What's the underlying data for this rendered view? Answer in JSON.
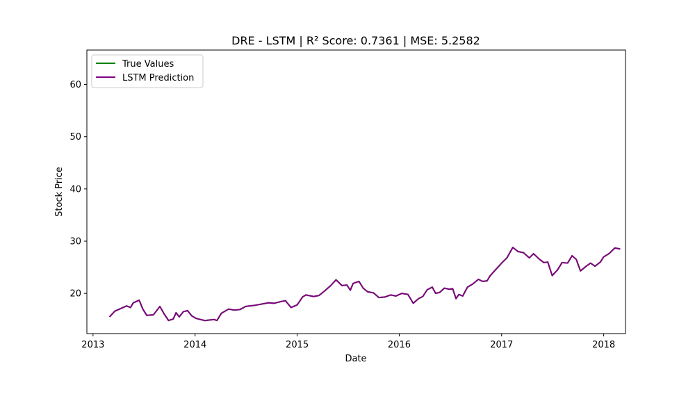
{
  "chart_data": {
    "type": "line",
    "title": "DRE - LSTM | R² Score: 0.7361 | MSE: 5.2582",
    "xlabel": "Date",
    "ylabel": "Stock Price",
    "xlim": [
      "2012-12-10",
      "2018-03-20"
    ],
    "ylim": [
      12.3,
      66.6
    ],
    "x_ticks": [
      {
        "date": "2013-01-01",
        "label": "2013"
      },
      {
        "date": "2014-01-01",
        "label": "2014"
      },
      {
        "date": "2015-01-01",
        "label": "2015"
      },
      {
        "date": "2016-01-01",
        "label": "2016"
      },
      {
        "date": "2017-01-01",
        "label": "2017"
      },
      {
        "date": "2018-01-01",
        "label": "2018"
      }
    ],
    "y_ticks": [
      20,
      30,
      40,
      50,
      60
    ],
    "grid": false,
    "legend_position": "top-left",
    "series": [
      {
        "name": "True Values",
        "color": "#008000",
        "points": [
          [
            "2013-03-01",
            15.5
          ],
          [
            "2013-03-20",
            16.6
          ],
          [
            "2013-04-10",
            17.1
          ],
          [
            "2013-05-01",
            17.6
          ],
          [
            "2013-05-15",
            17.3
          ],
          [
            "2013-05-25",
            18.2
          ],
          [
            "2013-06-15",
            18.7
          ],
          [
            "2013-06-28",
            17.0
          ],
          [
            "2013-07-12",
            15.8
          ],
          [
            "2013-08-05",
            15.9
          ],
          [
            "2013-08-28",
            17.5
          ],
          [
            "2013-09-12",
            16.1
          ],
          [
            "2013-09-28",
            14.8
          ],
          [
            "2013-10-15",
            15.1
          ],
          [
            "2013-10-25",
            16.3
          ],
          [
            "2013-11-05",
            15.5
          ],
          [
            "2013-11-20",
            16.5
          ],
          [
            "2013-12-05",
            16.7
          ],
          [
            "2013-12-20",
            15.7
          ],
          [
            "2014-01-05",
            15.2
          ],
          [
            "2014-01-20",
            15.0
          ],
          [
            "2014-02-05",
            14.8
          ],
          [
            "2014-02-20",
            14.9
          ],
          [
            "2014-03-10",
            15.0
          ],
          [
            "2014-03-20",
            14.8
          ],
          [
            "2014-04-05",
            16.2
          ],
          [
            "2014-05-01",
            17.0
          ],
          [
            "2014-05-20",
            16.8
          ],
          [
            "2014-06-10",
            16.9
          ],
          [
            "2014-07-01",
            17.5
          ],
          [
            "2014-08-01",
            17.7
          ],
          [
            "2014-09-01",
            18.0
          ],
          [
            "2014-09-20",
            18.2
          ],
          [
            "2014-10-10",
            18.1
          ],
          [
            "2014-11-01",
            18.4
          ],
          [
            "2014-11-20",
            18.6
          ],
          [
            "2014-12-10",
            17.3
          ],
          [
            "2015-01-01",
            17.8
          ],
          [
            "2015-01-20",
            19.3
          ],
          [
            "2015-02-01",
            19.7
          ],
          [
            "2015-03-01",
            19.4
          ],
          [
            "2015-03-20",
            19.6
          ],
          [
            "2015-04-10",
            20.5
          ],
          [
            "2015-05-01",
            21.5
          ],
          [
            "2015-05-20",
            22.6
          ],
          [
            "2015-06-10",
            21.5
          ],
          [
            "2015-06-28",
            21.6
          ],
          [
            "2015-07-10",
            20.6
          ],
          [
            "2015-07-20",
            21.9
          ],
          [
            "2015-08-10",
            22.3
          ],
          [
            "2015-08-25",
            21.0
          ],
          [
            "2015-09-10",
            20.3
          ],
          [
            "2015-10-01",
            20.1
          ],
          [
            "2015-10-20",
            19.2
          ],
          [
            "2015-11-10",
            19.3
          ],
          [
            "2015-12-01",
            19.7
          ],
          [
            "2015-12-20",
            19.5
          ],
          [
            "2016-01-10",
            20.0
          ],
          [
            "2016-02-01",
            19.8
          ],
          [
            "2016-02-20",
            18.1
          ],
          [
            "2016-03-10",
            19.0
          ],
          [
            "2016-03-25",
            19.4
          ],
          [
            "2016-04-10",
            20.7
          ],
          [
            "2016-04-28",
            21.2
          ],
          [
            "2016-05-10",
            20.0
          ],
          [
            "2016-05-25",
            20.2
          ],
          [
            "2016-06-10",
            21.0
          ],
          [
            "2016-06-28",
            20.8
          ],
          [
            "2016-07-10",
            20.9
          ],
          [
            "2016-07-22",
            19.0
          ],
          [
            "2016-08-01",
            19.8
          ],
          [
            "2016-08-15",
            19.5
          ],
          [
            "2016-09-01",
            21.2
          ],
          [
            "2016-09-20",
            21.8
          ],
          [
            "2016-10-10",
            22.7
          ],
          [
            "2016-10-25",
            22.3
          ],
          [
            "2016-11-10",
            22.4
          ],
          [
            "2016-11-20",
            23.3
          ],
          [
            "2016-12-10",
            24.5
          ],
          [
            "2017-01-01",
            25.8
          ],
          [
            "2017-01-20",
            26.8
          ],
          [
            "2017-02-10",
            28.8
          ],
          [
            "2017-03-01",
            28.0
          ],
          [
            "2017-03-20",
            27.8
          ],
          [
            "2017-04-10",
            26.8
          ],
          [
            "2017-04-25",
            27.6
          ],
          [
            "2017-05-15",
            26.6
          ],
          [
            "2017-06-01",
            25.9
          ],
          [
            "2017-06-15",
            26.0
          ],
          [
            "2017-07-01",
            23.4
          ],
          [
            "2017-07-20",
            24.5
          ],
          [
            "2017-08-05",
            25.9
          ],
          [
            "2017-08-25",
            25.8
          ],
          [
            "2017-09-10",
            27.2
          ],
          [
            "2017-09-25",
            26.5
          ],
          [
            "2017-10-10",
            24.3
          ],
          [
            "2017-10-28",
            25.1
          ],
          [
            "2017-11-15",
            25.8
          ],
          [
            "2017-12-01",
            25.2
          ],
          [
            "2017-12-20",
            26.0
          ],
          [
            "2018-01-01",
            27.0
          ],
          [
            "2018-01-20",
            27.6
          ],
          [
            "2018-02-10",
            28.7
          ],
          [
            "2018-03-01",
            28.5
          ]
        ]
      },
      {
        "name": "LSTM Prediction",
        "color": "#800080",
        "points": []
      }
    ]
  }
}
